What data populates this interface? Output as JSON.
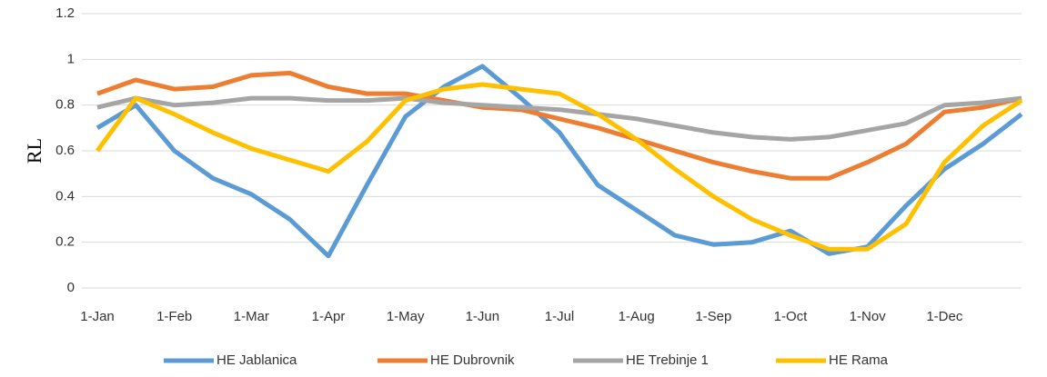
{
  "chart_data": {
    "type": "line",
    "ylabel": "RL",
    "x": [
      "1-Jan",
      "16-Jan",
      "1-Feb",
      "16-Feb",
      "1-Mar",
      "16-Mar",
      "1-Apr",
      "16-Apr",
      "1-May",
      "16-May",
      "1-Jun",
      "16-Jun",
      "1-Jul",
      "16-Jul",
      "1-Aug",
      "16-Aug",
      "1-Sep",
      "16-Sep",
      "1-Oct",
      "16-Oct",
      "1-Nov",
      "16-Nov",
      "1-Dec",
      "16-Dec",
      "31-Dec"
    ],
    "xticks": [
      "1-Jan",
      "1-Feb",
      "1-Mar",
      "1-Apr",
      "1-May",
      "1-Jun",
      "1-Jul",
      "1-Aug",
      "1-Sep",
      "1-Oct",
      "1-Nov",
      "1-Dec"
    ],
    "ylim": [
      0,
      1.2
    ],
    "yticks": [
      0,
      0.2,
      0.4,
      0.6,
      0.8,
      1,
      1.2
    ],
    "grid": true,
    "legend": "bottom",
    "series": [
      {
        "name": "HE Jablanica",
        "color": "#5b9bd5",
        "values": [
          0.7,
          0.8,
          0.6,
          0.48,
          0.41,
          0.3,
          0.14,
          0.45,
          0.75,
          0.88,
          0.97,
          0.83,
          0.68,
          0.45,
          0.34,
          0.23,
          0.19,
          0.2,
          0.25,
          0.15,
          0.18,
          0.36,
          0.52,
          0.63,
          0.76
        ]
      },
      {
        "name": "HE Dubrovnik",
        "color": "#ed7d31",
        "values": [
          0.85,
          0.91,
          0.87,
          0.88,
          0.93,
          0.94,
          0.88,
          0.85,
          0.85,
          0.82,
          0.79,
          0.78,
          0.74,
          0.7,
          0.65,
          0.6,
          0.55,
          0.51,
          0.48,
          0.48,
          0.55,
          0.63,
          0.77,
          0.79,
          0.83
        ]
      },
      {
        "name": "HE Trebinje 1",
        "color": "#a5a5a5",
        "values": [
          0.79,
          0.83,
          0.8,
          0.81,
          0.83,
          0.83,
          0.82,
          0.82,
          0.83,
          0.81,
          0.8,
          0.79,
          0.78,
          0.76,
          0.74,
          0.71,
          0.68,
          0.66,
          0.65,
          0.66,
          0.69,
          0.72,
          0.8,
          0.81,
          0.83
        ]
      },
      {
        "name": "HE Rama",
        "color": "#ffc000",
        "values": [
          0.6,
          0.83,
          0.76,
          0.68,
          0.61,
          0.56,
          0.51,
          0.64,
          0.82,
          0.87,
          0.89,
          0.87,
          0.85,
          0.76,
          0.65,
          0.52,
          0.4,
          0.3,
          0.23,
          0.17,
          0.17,
          0.28,
          0.55,
          0.71,
          0.82
        ]
      }
    ]
  }
}
